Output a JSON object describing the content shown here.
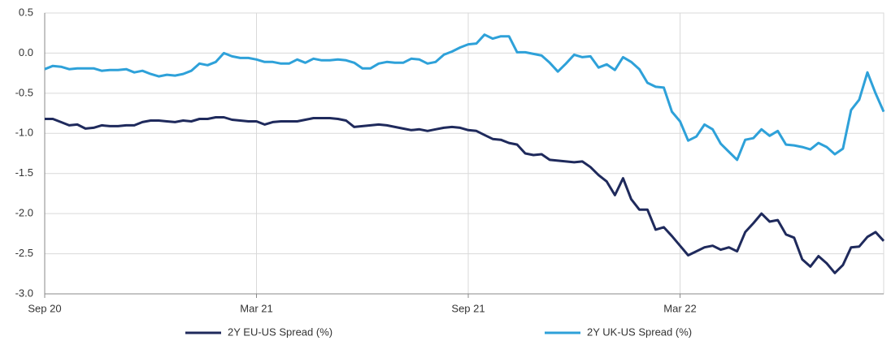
{
  "chart_data": {
    "type": "line",
    "categories": [
      "Sep 20",
      null,
      null,
      null,
      null,
      null,
      null,
      null,
      null,
      null,
      null,
      null,
      null,
      null,
      null,
      null,
      null,
      null,
      null,
      null,
      null,
      null,
      null,
      null,
      null,
      null,
      "Mar 21",
      null,
      null,
      null,
      null,
      null,
      null,
      null,
      null,
      null,
      null,
      null,
      null,
      null,
      null,
      null,
      null,
      null,
      null,
      null,
      null,
      null,
      null,
      null,
      null,
      null,
      "Sep 21",
      null,
      null,
      null,
      null,
      null,
      null,
      null,
      null,
      null,
      null,
      null,
      null,
      null,
      null,
      null,
      null,
      null,
      null,
      null,
      null,
      null,
      null,
      null,
      null,
      null,
      "Mar 22",
      null,
      null,
      null,
      null,
      null,
      null,
      null,
      null,
      null,
      null,
      null,
      null,
      null,
      null,
      null,
      null,
      null,
      null,
      null,
      null,
      null,
      null,
      null,
      null,
      null
    ],
    "series": [
      {
        "name": "2Y EU-US Spread (%)",
        "color": "#1f2a5c",
        "values": [
          -0.82,
          -0.82,
          -0.86,
          -0.9,
          -0.89,
          -0.94,
          -0.93,
          -0.9,
          -0.91,
          -0.91,
          -0.9,
          -0.9,
          -0.86,
          -0.84,
          -0.84,
          -0.85,
          -0.86,
          -0.84,
          -0.85,
          -0.82,
          -0.82,
          -0.8,
          -0.8,
          -0.83,
          -0.84,
          -0.85,
          -0.85,
          -0.89,
          -0.86,
          -0.85,
          -0.85,
          -0.85,
          -0.83,
          -0.81,
          -0.81,
          -0.81,
          -0.82,
          -0.84,
          -0.92,
          -0.91,
          -0.9,
          -0.89,
          -0.9,
          -0.92,
          -0.94,
          -0.96,
          -0.95,
          -0.97,
          -0.95,
          -0.93,
          -0.92,
          -0.93,
          -0.96,
          -0.97,
          -1.02,
          -1.07,
          -1.08,
          -1.12,
          -1.14,
          -1.25,
          -1.27,
          -1.26,
          -1.33,
          -1.34,
          -1.35,
          -1.36,
          -1.35,
          -1.42,
          -1.52,
          -1.6,
          -1.77,
          -1.56,
          -1.82,
          -1.95,
          -1.95,
          -2.2,
          -2.17,
          -2.28,
          -2.4,
          -2.52,
          -2.47,
          -2.42,
          -2.4,
          -2.45,
          -2.42,
          -2.47,
          -2.23,
          -2.12,
          -2.0,
          -2.1,
          -2.08,
          -2.26,
          -2.3,
          -2.57,
          -2.66,
          -2.53,
          -2.62,
          -2.74,
          -2.64,
          -2.42,
          -2.41,
          -2.29,
          -2.23,
          -2.34
        ]
      },
      {
        "name": "2Y UK-US Spread (%)",
        "color": "#2ea1d9",
        "values": [
          -0.2,
          -0.16,
          -0.17,
          -0.2,
          -0.19,
          -0.19,
          -0.19,
          -0.22,
          -0.21,
          -0.21,
          -0.2,
          -0.24,
          -0.22,
          -0.26,
          -0.29,
          -0.27,
          -0.28,
          -0.26,
          -0.22,
          -0.13,
          -0.15,
          -0.11,
          0.0,
          -0.04,
          -0.06,
          -0.06,
          -0.08,
          -0.11,
          -0.11,
          -0.13,
          -0.13,
          -0.08,
          -0.12,
          -0.07,
          -0.09,
          -0.09,
          -0.08,
          -0.09,
          -0.12,
          -0.19,
          -0.19,
          -0.13,
          -0.11,
          -0.12,
          -0.12,
          -0.07,
          -0.08,
          -0.13,
          -0.11,
          -0.02,
          0.02,
          0.07,
          0.11,
          0.12,
          0.23,
          0.18,
          0.21,
          0.21,
          0.01,
          0.01,
          -0.01,
          -0.03,
          -0.12,
          -0.23,
          -0.13,
          -0.02,
          -0.05,
          -0.04,
          -0.18,
          -0.14,
          -0.21,
          -0.05,
          -0.11,
          -0.2,
          -0.37,
          -0.42,
          -0.43,
          -0.73,
          -0.85,
          -1.09,
          -1.04,
          -0.89,
          -0.95,
          -1.13,
          -1.23,
          -1.33,
          -1.08,
          -1.06,
          -0.95,
          -1.03,
          -0.97,
          -1.14,
          -1.15,
          -1.17,
          -1.2,
          -1.12,
          -1.17,
          -1.26,
          -1.19,
          -0.71,
          -0.58,
          -0.24,
          -0.5,
          -0.73
        ]
      }
    ],
    "ylim": [
      -3.0,
      0.5
    ],
    "yticks": [
      0.5,
      {
        "value": 0,
        "label": "0.0"
      },
      -0.5,
      {
        "value": -1,
        "label": "-1.0"
      },
      -1.5,
      {
        "value": -2,
        "label": "-2.0"
      },
      -2.5,
      {
        "value": -3,
        "label": "-3.0"
      }
    ],
    "grid": true,
    "legend": "bottom"
  }
}
